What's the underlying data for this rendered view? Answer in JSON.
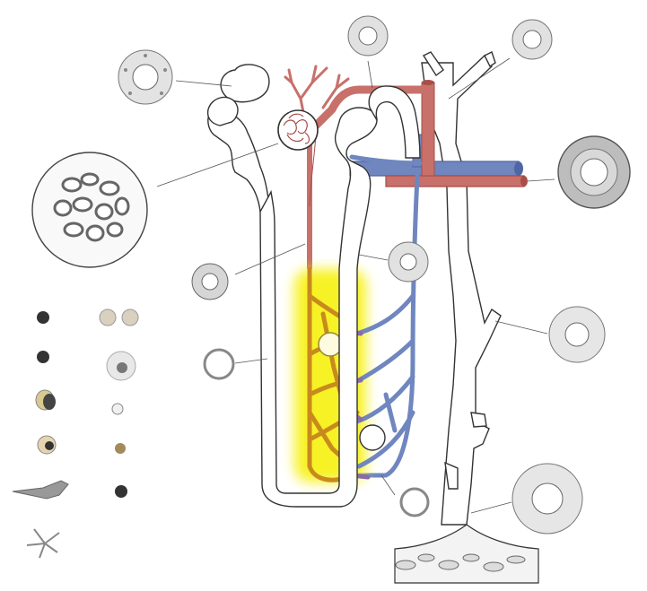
{
  "figure": {
    "kind": "nephron-illustration",
    "labels": [],
    "colors": {
      "background": "#ffffff",
      "tubule_fill": "#ffffff",
      "outline": "#333333",
      "artery": "#c8706a",
      "artery_dark": "#a84e4a",
      "vein": "#6f86bf",
      "vein_dark": "#4f66a5",
      "highlight_glow": "#f6f000",
      "highlight_vessels": "#c98a1d",
      "purple_transition": "#8a6aa8",
      "cell_gray": "#cfcfcf",
      "nucleus_dark": "#333333"
    }
  },
  "parts": {
    "tubule": "nephron-tubule",
    "collecting_duct": "collecting-duct",
    "afferent_artery": "renal-artery",
    "vein": "renal-vein",
    "glomerulus": "glomerulus",
    "vasa_recta_highlight": "highlighted-capillary-network",
    "papilla": "renal-papilla",
    "blood_cells": "blood-cell-legend"
  }
}
